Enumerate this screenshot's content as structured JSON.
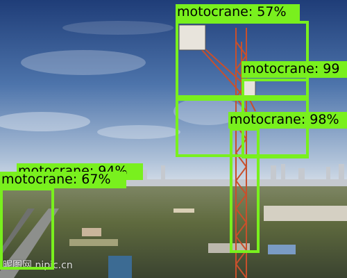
{
  "detections": [
    {
      "label": "motocrane: 57%",
      "class": "motocrane",
      "confidence": 0.57
    },
    {
      "label": "motocrane: 99",
      "class": "motocrane",
      "confidence": 0.99
    },
    {
      "label": "motocrane: 98%",
      "class": "motocrane",
      "confidence": 0.98
    },
    {
      "label": "motocrane: 94%",
      "class": "motocrane",
      "confidence": 0.94
    },
    {
      "label": "motocrane: 67%",
      "class": "motocrane",
      "confidence": 0.67
    }
  ],
  "watermark": "昵图网 nipic.cn",
  "colors": {
    "box": "#79f01e",
    "label_text": "#000000",
    "sky_top": "#2a4a86",
    "sky_horizon": "#c9d6e4",
    "crane": "#c8502c"
  }
}
